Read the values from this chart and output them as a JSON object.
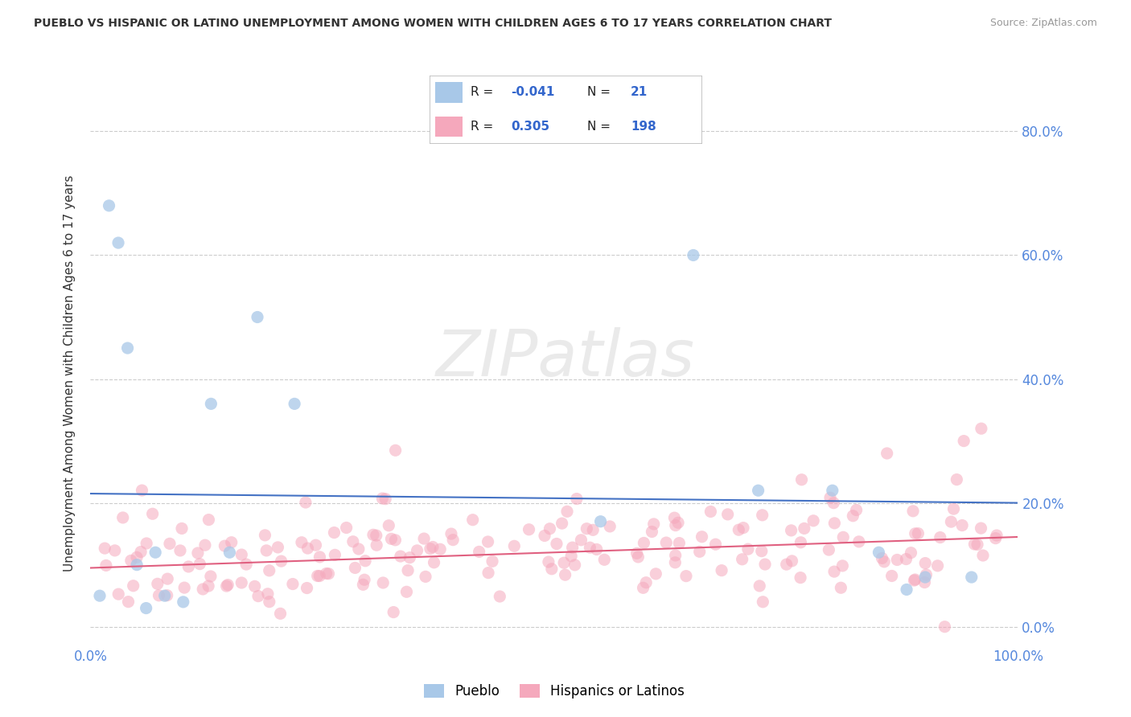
{
  "title": "PUEBLO VS HISPANIC OR LATINO UNEMPLOYMENT AMONG WOMEN WITH CHILDREN AGES 6 TO 17 YEARS CORRELATION CHART",
  "source": "Source: ZipAtlas.com",
  "ylabel": "Unemployment Among Women with Children Ages 6 to 17 years",
  "xlim": [
    0,
    100
  ],
  "ylim": [
    -3,
    85
  ],
  "yticks": [
    0,
    20,
    40,
    60,
    80
  ],
  "xticks": [
    0,
    25,
    50,
    75,
    100
  ],
  "xtick_labels": [
    "0.0%",
    "",
    "",
    "",
    "100.0%"
  ],
  "pueblo_color": "#a8c8e8",
  "latino_color": "#f5a8bc",
  "pueblo_line_color": "#4472c4",
  "latino_line_color": "#e06080",
  "R_pueblo": -0.041,
  "N_pueblo": 21,
  "R_latino": 0.305,
  "N_latino": 198,
  "background_color": "#ffffff",
  "tick_color": "#5588dd",
  "pueblo_scatter_x": [
    1,
    2,
    3,
    4,
    5,
    6,
    7,
    8,
    10,
    13,
    15,
    18,
    22,
    55,
    65,
    72,
    80,
    85,
    88,
    90,
    95
  ],
  "pueblo_scatter_y": [
    5,
    68,
    62,
    45,
    10,
    3,
    12,
    5,
    4,
    36,
    12,
    50,
    36,
    17,
    60,
    22,
    22,
    12,
    6,
    8,
    8
  ],
  "pueblo_line_x0": 0,
  "pueblo_line_x1": 100,
  "pueblo_line_y0": 21.5,
  "pueblo_line_y1": 20.0,
  "latino_line_x0": 0,
  "latino_line_x1": 100,
  "latino_line_y0": 9.5,
  "latino_line_y1": 14.5
}
